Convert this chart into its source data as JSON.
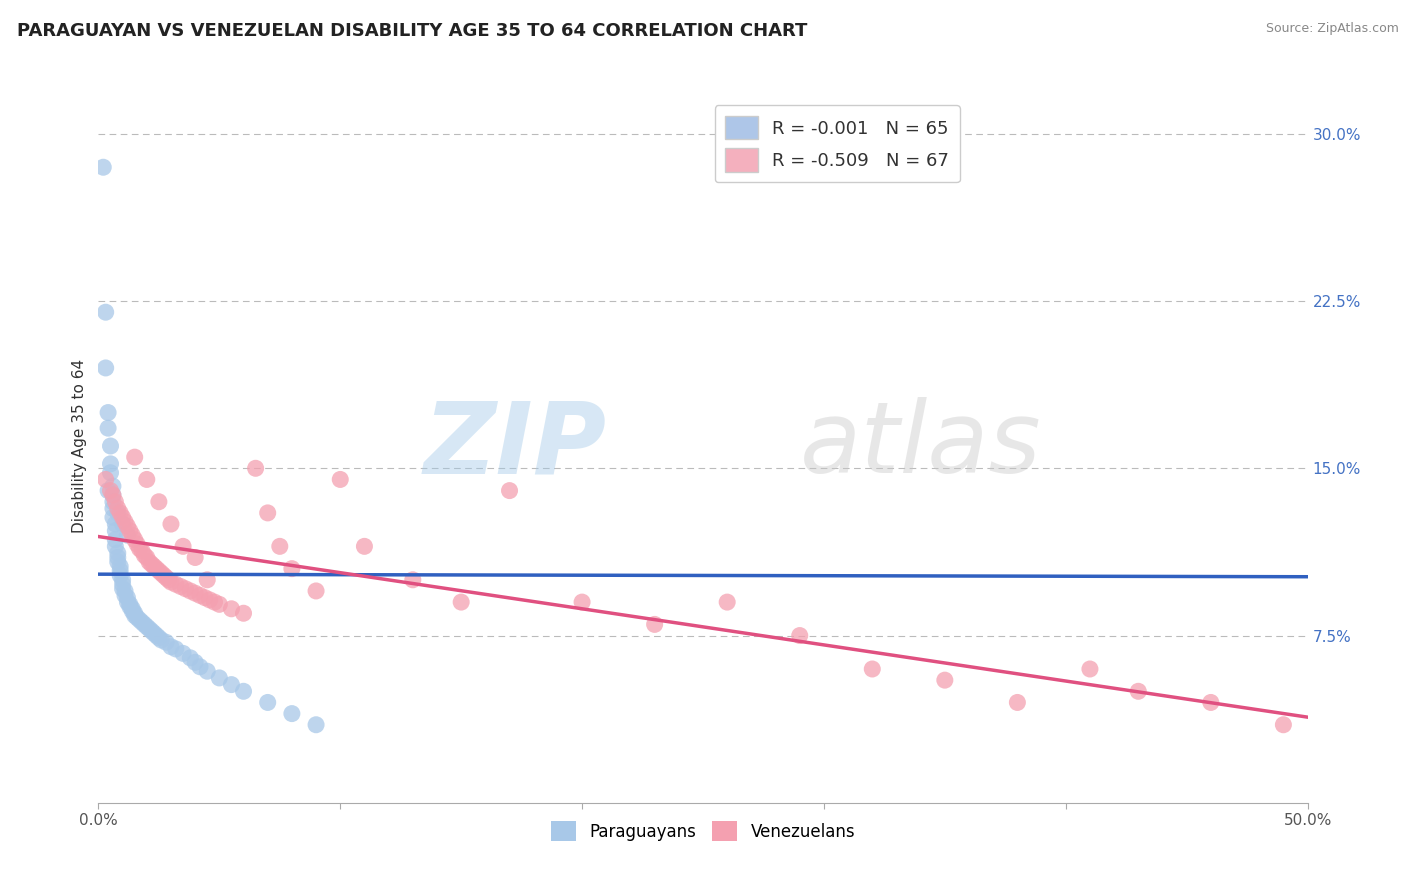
{
  "title": "PARAGUAYAN VS VENEZUELAN DISABILITY AGE 35 TO 64 CORRELATION CHART",
  "source": "Source: ZipAtlas.com",
  "ylabel": "Disability Age 35 to 64",
  "xlim": [
    0.0,
    0.5
  ],
  "ylim": [
    0.0,
    0.32
  ],
  "xtick_vals": [
    0.0,
    0.1,
    0.2,
    0.3,
    0.4,
    0.5
  ],
  "xtick_labels": [
    "0.0%",
    "",
    "",
    "",
    "",
    "50.0%"
  ],
  "yticks_right": [
    0.075,
    0.15,
    0.225,
    0.3
  ],
  "ytick_labels_right": [
    "7.5%",
    "15.0%",
    "22.5%",
    "30.0%"
  ],
  "blue_color": "#a8c8e8",
  "pink_color": "#f4a0b0",
  "blue_line_color": "#3060c0",
  "pink_line_color": "#e05080",
  "grid_color": "#bbbbbb",
  "background_color": "#ffffff",
  "blue_label": "Paraguayans",
  "pink_label": "Venezuelans",
  "legend_R_blue": "R = -0.001",
  "legend_N_blue": "N = 65",
  "legend_R_pink": "R = -0.509",
  "legend_N_pink": "N = 67",
  "title_fontsize": 13,
  "axis_label_fontsize": 11,
  "tick_fontsize": 11,
  "watermark_zip": "ZIP",
  "watermark_atlas": "atlas",
  "watermark_alpha": 0.12,
  "blue_x": [
    0.002,
    0.003,
    0.003,
    0.004,
    0.004,
    0.005,
    0.005,
    0.005,
    0.006,
    0.006,
    0.006,
    0.006,
    0.007,
    0.007,
    0.007,
    0.007,
    0.008,
    0.008,
    0.008,
    0.009,
    0.009,
    0.009,
    0.01,
    0.01,
    0.01,
    0.011,
    0.011,
    0.012,
    0.012,
    0.013,
    0.013,
    0.014,
    0.014,
    0.015,
    0.015,
    0.016,
    0.017,
    0.018,
    0.019,
    0.02,
    0.021,
    0.022,
    0.023,
    0.024,
    0.025,
    0.026,
    0.028,
    0.03,
    0.032,
    0.035,
    0.038,
    0.04,
    0.042,
    0.045,
    0.05,
    0.055,
    0.06,
    0.07,
    0.08,
    0.09,
    0.004,
    0.006,
    0.008,
    0.01,
    0.012
  ],
  "blue_y": [
    0.285,
    0.22,
    0.195,
    0.175,
    0.168,
    0.16,
    0.152,
    0.148,
    0.142,
    0.138,
    0.132,
    0.128,
    0.125,
    0.122,
    0.118,
    0.115,
    0.112,
    0.11,
    0.108,
    0.106,
    0.104,
    0.102,
    0.1,
    0.098,
    0.096,
    0.095,
    0.093,
    0.092,
    0.09,
    0.089,
    0.088,
    0.087,
    0.086,
    0.085,
    0.084,
    0.083,
    0.082,
    0.081,
    0.08,
    0.079,
    0.078,
    0.077,
    0.076,
    0.075,
    0.074,
    0.073,
    0.072,
    0.07,
    0.069,
    0.067,
    0.065,
    0.063,
    0.061,
    0.059,
    0.056,
    0.053,
    0.05,
    0.045,
    0.04,
    0.035,
    0.14,
    0.135,
    0.13,
    0.125,
    0.12
  ],
  "pink_x": [
    0.003,
    0.005,
    0.006,
    0.007,
    0.008,
    0.009,
    0.01,
    0.011,
    0.012,
    0.013,
    0.014,
    0.015,
    0.016,
    0.017,
    0.018,
    0.019,
    0.02,
    0.021,
    0.022,
    0.023,
    0.024,
    0.025,
    0.026,
    0.027,
    0.028,
    0.029,
    0.03,
    0.032,
    0.034,
    0.036,
    0.038,
    0.04,
    0.042,
    0.044,
    0.046,
    0.048,
    0.05,
    0.055,
    0.06,
    0.065,
    0.07,
    0.075,
    0.08,
    0.09,
    0.1,
    0.11,
    0.13,
    0.15,
    0.17,
    0.2,
    0.23,
    0.26,
    0.29,
    0.32,
    0.35,
    0.38,
    0.41,
    0.43,
    0.46,
    0.49,
    0.015,
    0.02,
    0.025,
    0.03,
    0.035,
    0.04,
    0.045
  ],
  "pink_y": [
    0.145,
    0.14,
    0.138,
    0.135,
    0.132,
    0.13,
    0.128,
    0.126,
    0.124,
    0.122,
    0.12,
    0.118,
    0.116,
    0.114,
    0.113,
    0.111,
    0.11,
    0.108,
    0.107,
    0.106,
    0.105,
    0.104,
    0.103,
    0.102,
    0.101,
    0.1,
    0.099,
    0.098,
    0.097,
    0.096,
    0.095,
    0.094,
    0.093,
    0.092,
    0.091,
    0.09,
    0.089,
    0.087,
    0.085,
    0.15,
    0.13,
    0.115,
    0.105,
    0.095,
    0.145,
    0.115,
    0.1,
    0.09,
    0.14,
    0.09,
    0.08,
    0.09,
    0.075,
    0.06,
    0.055,
    0.045,
    0.06,
    0.05,
    0.045,
    0.035,
    0.155,
    0.145,
    0.135,
    0.125,
    0.115,
    0.11,
    0.1
  ]
}
